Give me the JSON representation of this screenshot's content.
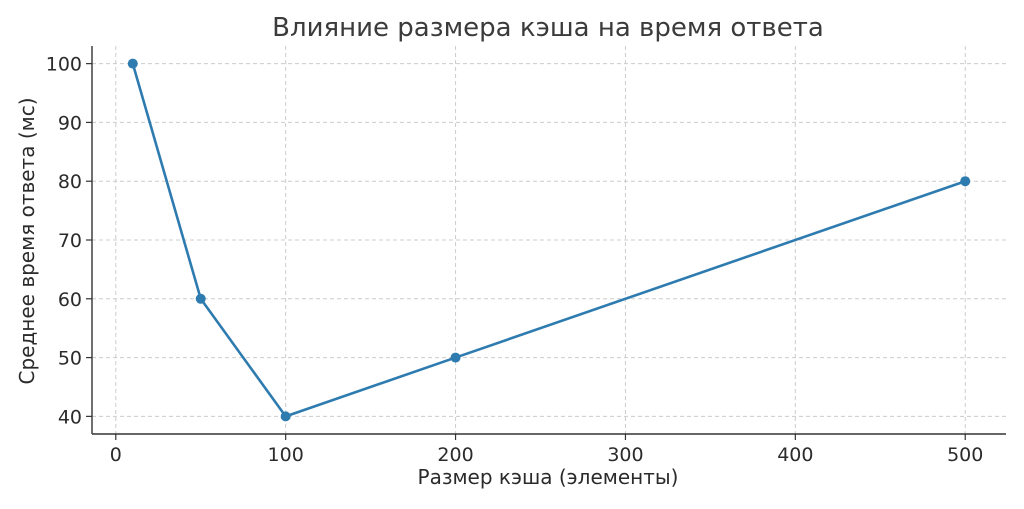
{
  "chart_data": {
    "type": "line",
    "title": "Влияние размера кэша на время ответа",
    "xlabel": "Размер кэша (элементы)",
    "ylabel": "Среднее время ответа (мс)",
    "x": [
      10,
      50,
      100,
      200,
      500
    ],
    "series": [
      {
        "values": [
          100,
          60,
          40,
          50,
          80
        ],
        "color": "#2e7bb0"
      }
    ],
    "xlim": [
      -14,
      524
    ],
    "ylim": [
      37,
      103
    ],
    "xticks": [
      0,
      100,
      200,
      300,
      400,
      500
    ],
    "yticks": [
      40,
      50,
      60,
      70,
      80,
      90,
      100
    ],
    "xtick_labels": [
      "0",
      "100",
      "200",
      "300",
      "400",
      "500"
    ],
    "ytick_labels": [
      "40",
      "50",
      "60",
      "70",
      "80",
      "90",
      "100"
    ],
    "grid": true,
    "marker": "circle"
  }
}
